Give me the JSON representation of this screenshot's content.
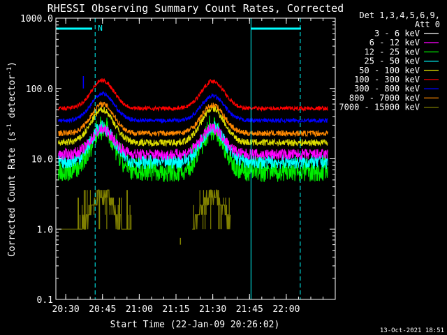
{
  "chart_data": {
    "type": "line",
    "title": "RHESSI Observing Summary Count Rates, Corrected",
    "xlabel": "Start Time (22-Jan-09 20:26:02)",
    "ylabel_main": "Corrected Count Rate (s",
    "ylabel_sup1": "-1",
    "ylabel_mid": " detector",
    "ylabel_sup2": "-1",
    "ylabel_end": ")",
    "yscale": "log",
    "ylim": [
      0.1,
      1000
    ],
    "xlim_minutes": [
      20.433,
      22.333
    ],
    "y_ticks": [
      {
        "v": 1000,
        "label": "1000.0"
      },
      {
        "v": 100,
        "label": "100.0"
      },
      {
        "v": 10,
        "label": "10.0"
      },
      {
        "v": 1,
        "label": "1.0"
      },
      {
        "v": 0.1,
        "label": "0.1"
      }
    ],
    "x_ticks": [
      {
        "t": 20.5,
        "label": "20:30"
      },
      {
        "t": 20.75,
        "label": "20:45"
      },
      {
        "t": 21.0,
        "label": "21:00"
      },
      {
        "t": 21.25,
        "label": "21:15"
      },
      {
        "t": 21.5,
        "label": "21:30"
      },
      {
        "t": 21.75,
        "label": "21:45"
      },
      {
        "t": 22.0,
        "label": "22:00"
      }
    ],
    "legend_header": [
      "Det 1,3,4,5,6,9,",
      "Att 0"
    ],
    "legend_position": "top-right, outside plot",
    "series": [
      {
        "name": "3 - 6 keV",
        "color": "#000000",
        "outline": true,
        "base": 4.6,
        "peak1": 15.5,
        "peak2": 15.5,
        "noise": 0.18,
        "start": 20.6
      },
      {
        "name": "6 - 12 keV",
        "color": "#ff00ff",
        "base": 11.5,
        "peak1": 26,
        "peak2": 27,
        "noise": 0.08
      },
      {
        "name": "12 - 25 keV",
        "color": "#00ee00",
        "base": 6.2,
        "peak1": 24,
        "peak2": 24,
        "noise": 0.12
      },
      {
        "name": "25 - 50 keV",
        "color": "#00ffff",
        "base": 9.0,
        "peak1": 28,
        "peak2": 28,
        "noise": 0.1
      },
      {
        "name": "50 - 100 keV",
        "color": "#dddd00",
        "base": 17,
        "peak1": 50,
        "peak2": 52,
        "noise": 0.05
      },
      {
        "name": "100 - 300 keV",
        "color": "#ff0000",
        "base": 52,
        "peak1": 130,
        "peak2": 128,
        "noise": 0.03
      },
      {
        "name": "300 - 800 keV",
        "color": "#0000ff",
        "base": 35,
        "peak1": 85,
        "peak2": 78,
        "noise": 0.03
      },
      {
        "name": "800 - 7000 keV",
        "color": "#ff8800",
        "base": 23,
        "peak1": 60,
        "peak2": 58,
        "noise": 0.04
      },
      {
        "name": "7000 - 15000 keV",
        "color": "#808000",
        "base": 1.0,
        "peak1": 3.6,
        "peak2": 3.6,
        "noise": 0.0,
        "stepped": true
      }
    ],
    "peaks_minutes": [
      20.75,
      21.5
    ],
    "night_marker_label": "N",
    "night_bars": [
      [
        20.433,
        20.68
      ],
      [
        21.76,
        22.1
      ]
    ],
    "night_lines": [
      20.433,
      20.7,
      21.76,
      22.095
    ],
    "timestamp": "13-Oct-2021 18:51"
  }
}
